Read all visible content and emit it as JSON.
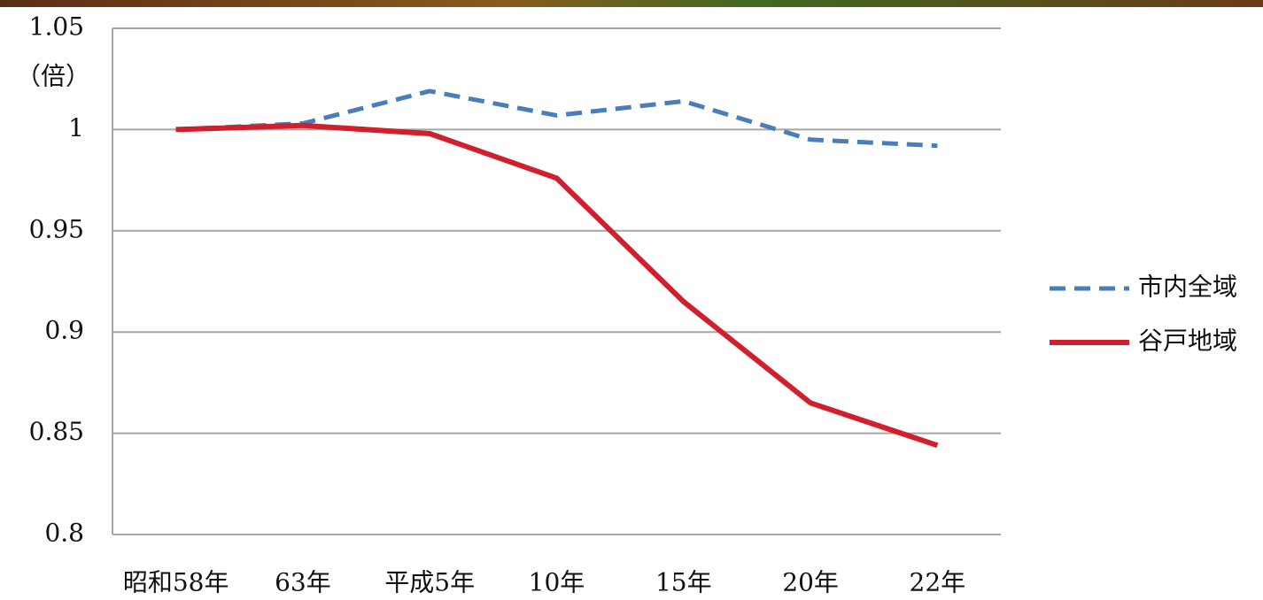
{
  "chart_data": {
    "type": "line",
    "y_label": "（倍）",
    "categories": [
      "昭和58年",
      "63年",
      "平成5年",
      "10年",
      "15年",
      "20年",
      "22年"
    ],
    "series": [
      {
        "name": "市内全域",
        "color": "#4a7ebb",
        "dashed": true,
        "values": [
          1.0,
          1.003,
          1.019,
          1.007,
          1.014,
          0.995,
          0.992
        ]
      },
      {
        "name": "谷戸地域",
        "color": "#d0202e",
        "dashed": false,
        "values": [
          1.0,
          1.002,
          0.998,
          0.976,
          0.915,
          0.865,
          0.844
        ]
      }
    ],
    "ylim": [
      0.8,
      1.05
    ],
    "yticks": [
      0.8,
      0.85,
      0.9,
      0.95,
      1,
      1.05
    ],
    "grid": true,
    "legend": "right"
  }
}
